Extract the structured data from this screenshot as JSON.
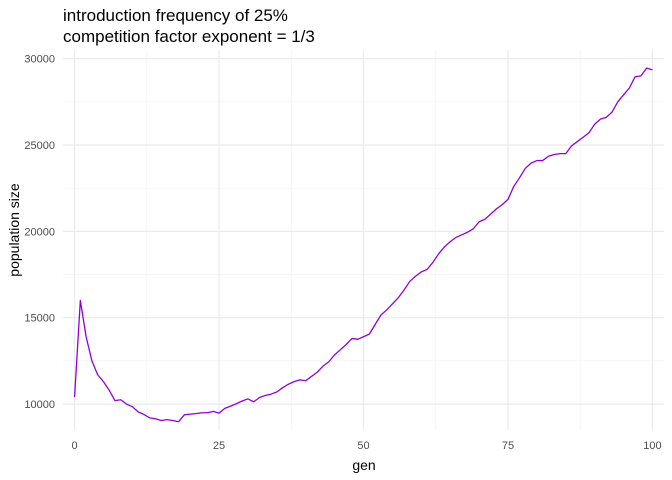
{
  "chart_data": {
    "type": "line",
    "title": [
      "introduction frequency of 25%",
      "competition factor exponent = 1/3"
    ],
    "xlabel": "gen",
    "ylabel": "population size",
    "xlim": [
      -2,
      102
    ],
    "ylim": [
      8500,
      30500
    ],
    "x_ticks": [
      0,
      25,
      50,
      75,
      100
    ],
    "x_tick_labels": [
      "0",
      "25",
      "50",
      "75",
      "100"
    ],
    "y_ticks": [
      10000,
      15000,
      20000,
      25000,
      30000
    ],
    "y_tick_labels": [
      "10000",
      "15000",
      "20000",
      "25000",
      "30000"
    ],
    "grid": true,
    "line_color": "#9400D3",
    "series": [
      {
        "x": [
          0,
          1,
          2,
          3,
          4,
          5,
          6,
          7,
          8,
          9,
          10,
          11,
          12,
          13,
          14,
          15,
          16,
          17,
          18,
          19,
          20,
          21,
          22,
          23,
          24,
          25,
          26,
          27,
          28,
          29,
          30,
          31,
          32,
          33,
          34,
          35,
          36,
          37,
          38,
          39,
          40,
          41,
          42,
          43,
          44,
          45,
          46,
          47,
          48,
          49,
          50,
          51,
          52,
          53,
          54,
          55,
          56,
          57,
          58,
          59,
          60,
          61,
          62,
          63,
          64,
          65,
          66,
          67,
          68,
          69,
          70,
          71,
          72,
          73,
          74,
          75,
          76,
          77,
          78,
          79,
          80,
          81,
          82,
          83,
          84,
          85,
          86,
          87,
          88,
          89,
          90,
          91,
          92,
          93,
          94,
          95,
          96,
          97,
          98,
          99,
          100
        ],
        "values": [
          10400,
          16000,
          13900,
          12500,
          11700,
          11300,
          10800,
          10200,
          10250,
          10000,
          9850,
          9550,
          9400,
          9200,
          9150,
          9050,
          9100,
          9050,
          8980,
          9380,
          9420,
          9450,
          9500,
          9500,
          9580,
          9480,
          9750,
          9880,
          10020,
          10180,
          10300,
          10130,
          10380,
          10500,
          10580,
          10700,
          10950,
          11150,
          11300,
          11400,
          11350,
          11600,
          11850,
          12200,
          12450,
          12850,
          13150,
          13450,
          13800,
          13750,
          13900,
          14050,
          14600,
          15150,
          15450,
          15800,
          16150,
          16600,
          17100,
          17400,
          17650,
          17800,
          18200,
          18700,
          19100,
          19400,
          19650,
          19800,
          19950,
          20150,
          20550,
          20700,
          21000,
          21300,
          21550,
          21850,
          22600,
          23100,
          23650,
          23950,
          24100,
          24100,
          24350,
          24450,
          24500,
          24500,
          24950,
          25200,
          25450,
          25700,
          26200,
          26500,
          26600,
          26900,
          27500,
          27900,
          28300,
          28950,
          29000,
          29450,
          29350
        ]
      }
    ]
  }
}
